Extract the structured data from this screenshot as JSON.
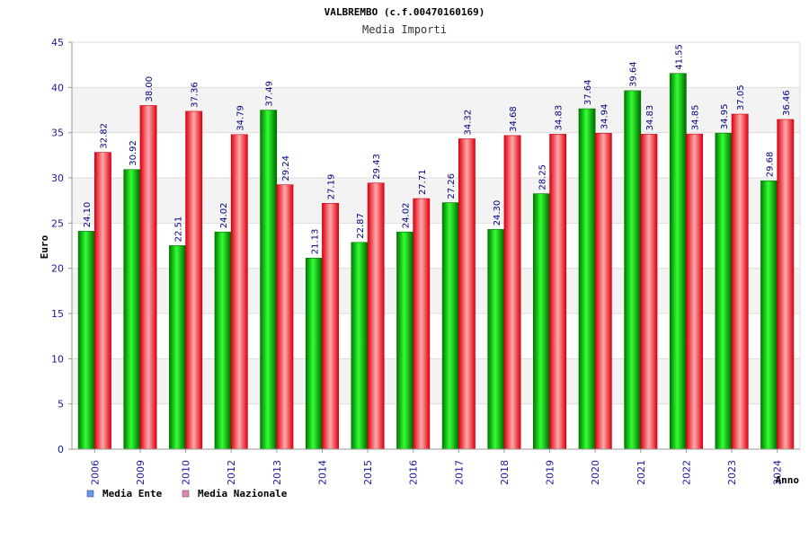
{
  "chart_data": {
    "type": "bar",
    "title": "VALBREMBO (c.f.00470160169)",
    "subtitle": "Media Importi",
    "ylabel": "Euro",
    "xlabel": "Anno",
    "ylim": [
      0,
      45
    ],
    "yticks": [
      "0",
      "5",
      "10",
      "15",
      "20",
      "25",
      "30",
      "35",
      "40",
      "45"
    ],
    "categories": [
      "2006",
      "2009",
      "2010",
      "2012",
      "2013",
      "2014",
      "2015",
      "2016",
      "2017",
      "2018",
      "2019",
      "2020",
      "2021",
      "2022",
      "2023",
      "2024"
    ],
    "series": [
      {
        "name": "Media Ente",
        "color": "#00cc00",
        "values": [
          24.1,
          30.92,
          22.51,
          24.02,
          37.49,
          21.13,
          22.87,
          24.02,
          27.26,
          24.3,
          28.25,
          37.64,
          39.64,
          41.55,
          34.95,
          29.68
        ],
        "labels": [
          "24.10",
          "30.92",
          "22.51",
          "24.02",
          "37.49",
          "21.13",
          "22.87",
          "24.02",
          "27.26",
          "24.30",
          "28.25",
          "37.64",
          "39.64",
          "41.55",
          "34.95",
          "29.68"
        ]
      },
      {
        "name": "Media Nazionale",
        "color": "#ee2233",
        "values": [
          32.82,
          38.0,
          37.36,
          34.79,
          29.24,
          27.19,
          29.43,
          27.71,
          34.32,
          34.68,
          34.83,
          34.94,
          34.83,
          34.85,
          37.05,
          36.46
        ],
        "labels": [
          "32.82",
          "38.00",
          "37.36",
          "34.79",
          "29.24",
          "27.19",
          "29.43",
          "27.71",
          "34.32",
          "34.68",
          "34.83",
          "34.94",
          "34.83",
          "34.85",
          "37.05",
          "36.46"
        ]
      }
    ],
    "grid": true,
    "legend": "bottom-left",
    "legend_colors": [
      "#6699ee",
      "#dd88bb"
    ]
  }
}
